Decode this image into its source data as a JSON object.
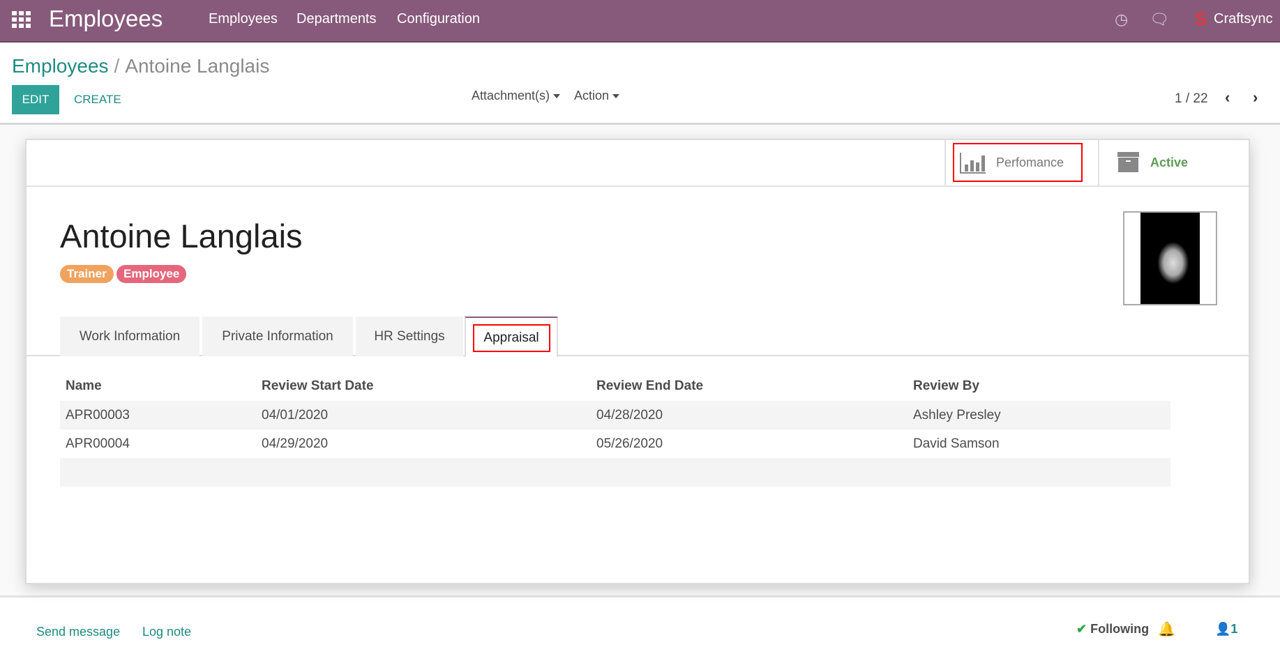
{
  "navbar": {
    "app_title": "Employees",
    "menu": [
      "Employees",
      "Departments",
      "Configuration"
    ],
    "user": "Craftsync",
    "icons": [
      "apps-grid-icon",
      "clock-icon",
      "chat-icon"
    ]
  },
  "breadcrumb": {
    "parent": "Employees",
    "separator": "/",
    "current": "Antoine Langlais"
  },
  "toolbar": {
    "edit": "EDIT",
    "create": "CREATE",
    "attachments": "Attachment(s)",
    "action": "Action",
    "pager": "1 / 22"
  },
  "smart_buttons": {
    "performance": "Perfomance",
    "active": "Active"
  },
  "employee": {
    "name": "Antoine Langlais",
    "tags": [
      {
        "label": "Trainer",
        "color": "#f0a35e"
      },
      {
        "label": "Employee",
        "color": "#e5677c"
      }
    ]
  },
  "tabs": [
    "Work Information",
    "Private Information",
    "HR Settings",
    "Appraisal"
  ],
  "active_tab": "Appraisal",
  "appraisal_table": {
    "headers": [
      "Name",
      "Review Start Date",
      "Review End Date",
      "Review By"
    ],
    "rows": [
      [
        "APR00003",
        "04/01/2020",
        "04/28/2020",
        "Ashley Presley"
      ],
      [
        "APR00004",
        "04/29/2020",
        "05/26/2020",
        "David Samson"
      ]
    ]
  },
  "chatter": {
    "send_message": "Send message",
    "log_note": "Log note",
    "following": "Following",
    "followers": "1"
  },
  "colors": {
    "navbar": "#875a7b",
    "primary": "#2fa39a",
    "link": "#1f8b82",
    "active_green": "#5d9c57",
    "highlight": "#ff0000"
  }
}
